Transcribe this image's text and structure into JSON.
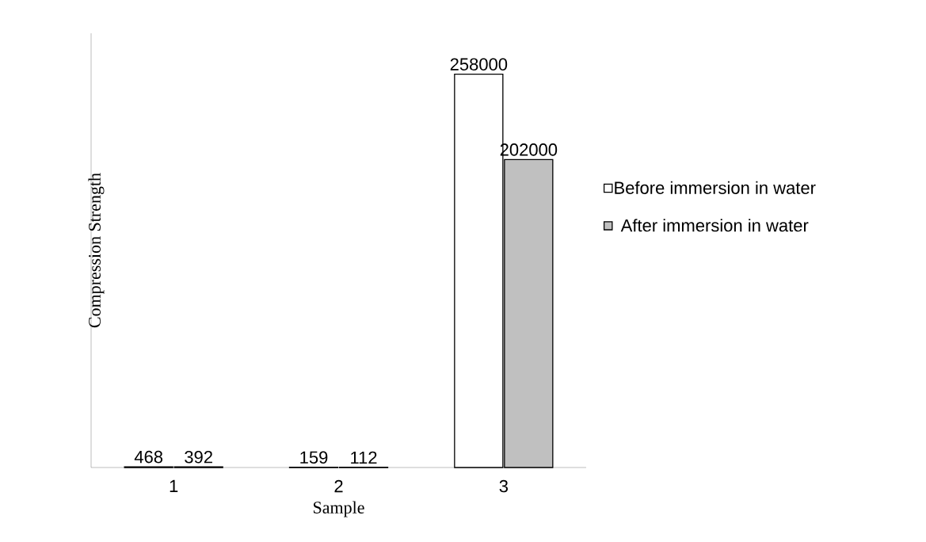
{
  "chart_data": {
    "type": "bar",
    "xlabel": "Sample",
    "ylabel": "Compression Strength",
    "categories": [
      "1",
      "2",
      "3"
    ],
    "data_labels": true,
    "legend": "right",
    "series": [
      {
        "name": "Before immersion in water",
        "color": "#ffffff",
        "values": [
          468,
          159,
          258000
        ]
      },
      {
        "name": "After immersion in water",
        "color": "#c0c0c0",
        "values": [
          392,
          112,
          202000
        ]
      }
    ]
  }
}
